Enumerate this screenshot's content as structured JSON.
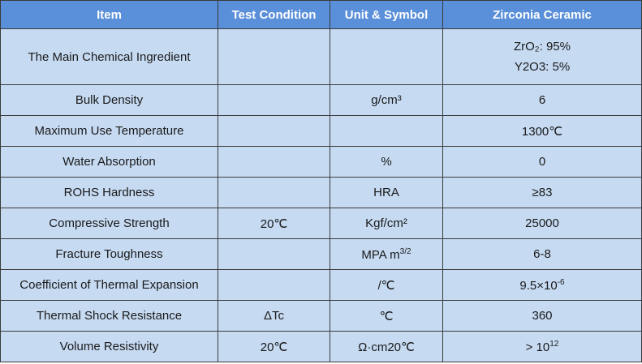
{
  "table": {
    "header": [
      "Item",
      "Test Condition",
      "Unit & Symbol",
      "Zirconia Ceramic"
    ],
    "rows": [
      [
        "The Main Chemical Ingredient",
        null,
        null,
        [
          "ZrO₂: 95%",
          "Y2O3: 5%"
        ]
      ],
      [
        "Bulk Density",
        null,
        "g/cm³",
        "6"
      ],
      [
        "Maximum Use Temperature",
        null,
        null,
        "1300℃"
      ],
      [
        "Water Absorption",
        null,
        "%",
        "0"
      ],
      [
        "ROHS Hardness",
        null,
        "HRA",
        "≥83"
      ],
      [
        "Compressive Strength",
        "20℃",
        "Kgf/cm²",
        "25000"
      ],
      [
        "Fracture Toughness",
        null,
        {
          "text": "MPA m",
          "sup": "3/2"
        },
        "6-8"
      ],
      [
        "Coefficient of Thermal Expansion",
        null,
        "/℃",
        {
          "text": "9.5×10",
          "sup": "-6"
        }
      ],
      [
        "Thermal Shock Resistance",
        "ΔTc",
        "℃",
        "360"
      ],
      [
        "Volume Resistivity",
        "20℃",
        "Ω·cm20℃",
        {
          "text": "> 10",
          "sup": "12"
        }
      ]
    ]
  }
}
